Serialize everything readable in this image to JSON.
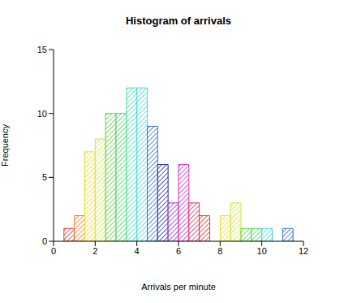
{
  "chart_data": {
    "type": "histogram",
    "title": "Histogram of arrivals",
    "x_label": "Arrivals per minute",
    "y_label": "Frequency",
    "bins": [
      0.5,
      1,
      1.5,
      2,
      2.5,
      3,
      3.5,
      4,
      4.5,
      5,
      5.5,
      6,
      6.5,
      7,
      7.5,
      8,
      8.5,
      9,
      9.5,
      10,
      10.5,
      11,
      11.5
    ],
    "values": [
      1,
      2,
      7,
      8,
      10,
      10,
      12,
      12,
      9,
      6,
      3,
      6,
      3,
      2,
      0,
      2,
      3,
      1,
      1,
      1,
      0,
      1
    ],
    "colors": [
      "#e8322a",
      "#f07a28",
      "#f0d820",
      "#d0e830",
      "#58d040",
      "#48d858",
      "#40e0b0",
      "#40d8e0",
      "#3070d8",
      "#2828a8",
      "#9030c8",
      "#d030c8",
      "#d83070",
      "#e8322a",
      "#f07a28",
      "#f0d820",
      "#c8e830",
      "#58d040",
      "#48d858",
      "#40d8e0",
      "#3890e0",
      "#3070d8"
    ],
    "xlim": [
      0,
      12
    ],
    "xticks": [
      0,
      2,
      4,
      6,
      8,
      10,
      12
    ],
    "ylim": [
      0,
      15
    ],
    "yticks": [
      0,
      5,
      10,
      15
    ]
  }
}
